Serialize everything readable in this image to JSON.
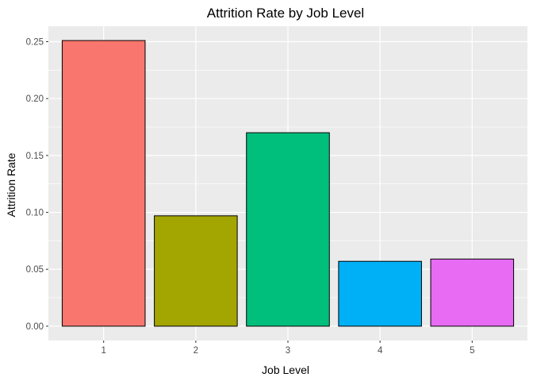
{
  "chart_data": {
    "type": "bar",
    "title": "Attrition Rate by Job Level",
    "xlabel": "Job Level",
    "ylabel": "Attrition Rate",
    "categories": [
      "1",
      "2",
      "3",
      "4",
      "5"
    ],
    "values": [
      0.251,
      0.097,
      0.17,
      0.057,
      0.059
    ],
    "bar_colors": [
      "#F8766D",
      "#A3A500",
      "#00BF7D",
      "#00B0F6",
      "#E76BF3"
    ],
    "ylim": [
      -0.0126,
      0.2636
    ],
    "yticks": [
      0.0,
      0.05,
      0.1,
      0.15,
      0.2,
      0.25
    ],
    "ytick_labels": [
      "0.00",
      "0.05",
      "0.10",
      "0.15",
      "0.20",
      "0.25"
    ],
    "grid": true,
    "legend": "none",
    "panel_background": "#EBEBEB",
    "grid_color": "#FFFFFF",
    "bar_outline": "#000000"
  }
}
